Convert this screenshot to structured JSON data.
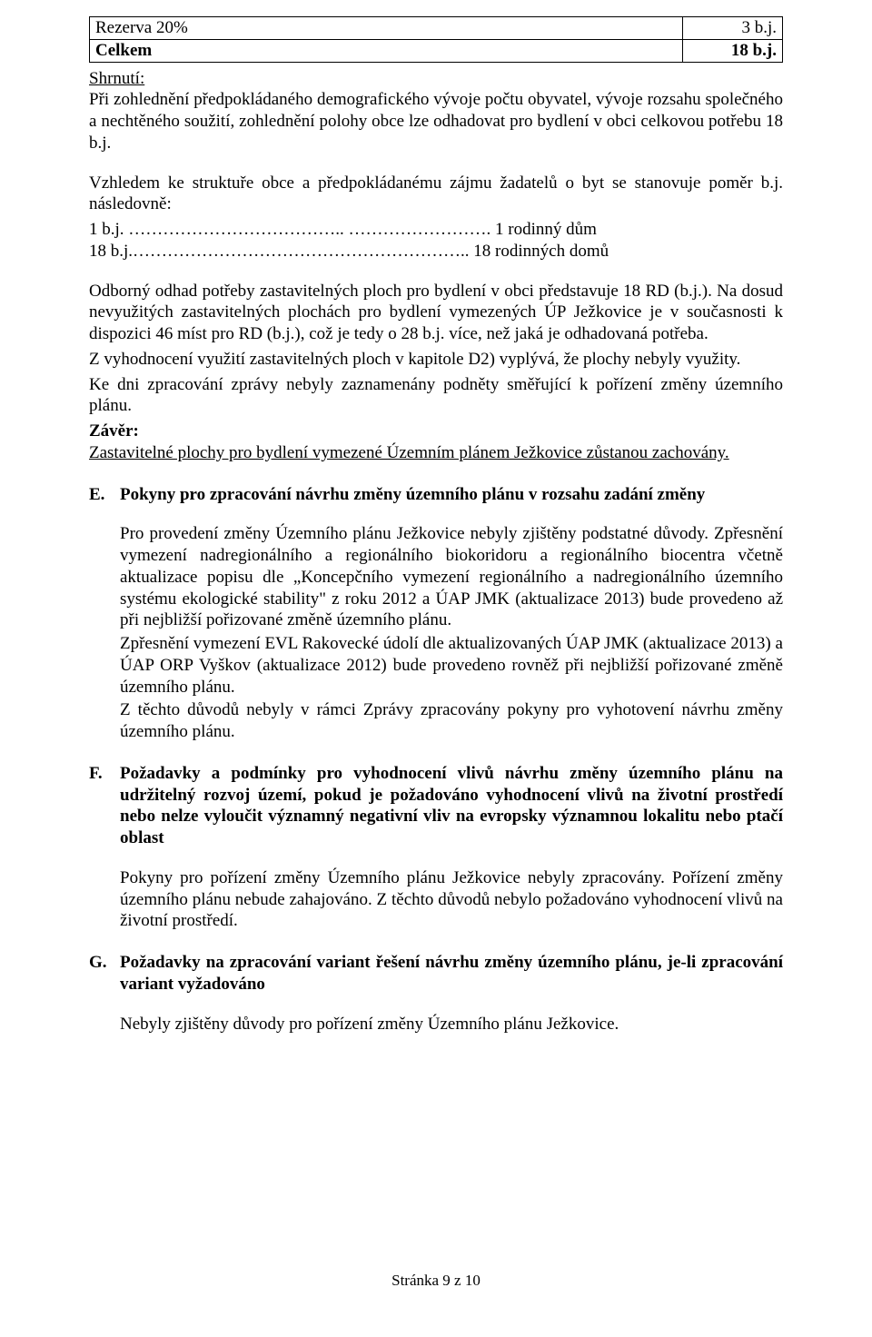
{
  "table": {
    "row1": {
      "label": "Rezerva 20%",
      "value": "3 b.j."
    },
    "row2": {
      "label": "Celkem",
      "value": "18 b.j."
    }
  },
  "shrnuti": {
    "heading": "Shrnutí:",
    "p1": "Při zohlednění předpokládaného demografického vývoje počtu obyvatel, vývoje rozsahu společného a nechtěného soužití, zohlednění polohy obce lze odhadovat pro bydlení v obci celkovou potřebu 18 b.j."
  },
  "vzhledem": {
    "p1": "Vzhledem ke struktuře obce a předpokládanému zájmu žadatelů o byt se stanovuje poměr b.j. následovně:",
    "l1": "1 b.j. ……………………………….. ……………………. 1 rodinný dům",
    "l2": "18 b.j.………………………………………………….. 18 rodinných domů"
  },
  "odborny": {
    "p1": "Odborný odhad potřeby zastavitelných ploch pro bydlení v obci představuje 18 RD (b.j.). Na dosud nevyužitých zastavitelných plochách pro bydlení vymezených ÚP Ježkovice je v současnosti k dispozici 46 míst pro RD (b.j.), což je tedy o 28 b.j. více, než jaká je odhadovaná potřeba.",
    "p2": "Z vyhodnocení využití zastavitelných ploch v kapitole D2) vyplývá, že plochy nebyly využity.",
    "p3": "Ke dni zpracování zprávy nebyly zaznamenány podněty směřující k pořízení změny územního plánu."
  },
  "zaver": {
    "heading": "Závěr:",
    "p1": "Zastavitelné plochy pro bydlení vymezené Územním plánem Ježkovice zůstanou zachovány."
  },
  "E": {
    "letter": "E.",
    "title": "Pokyny pro zpracování návrhu změny územního plánu v rozsahu zadání změny",
    "p1": "Pro provedení změny Územního plánu Ježkovice nebyly zjištěny podstatné důvody. Zpřesnění vymezení nadregionálního a regionálního biokoridoru a regionálního biocentra včetně aktualizace popisu dle „Koncepčního vymezení regionálního a nadregionálního územního systému ekologické stability\" z roku 2012 a ÚAP JMK (aktualizace 2013) bude provedeno až při nejbližší pořizované změně územního plánu.",
    "p2": "Zpřesnění vymezení EVL Rakovecké údolí dle aktualizovaných ÚAP JMK (aktualizace 2013) a ÚAP ORP Vyškov (aktualizace 2012) bude provedeno rovněž při nejbližší pořizované změně územního plánu.",
    "p3": "Z těchto důvodů nebyly v rámci Zprávy zpracovány pokyny pro vyhotovení návrhu změny územního plánu."
  },
  "F": {
    "letter": "F.",
    "title": "Požadavky a podmínky pro vyhodnocení vlivů návrhu změny územního plánu na udržitelný rozvoj území, pokud je požadováno vyhodnocení vlivů na životní prostředí nebo nelze vyloučit významný negativní vliv na evropsky významnou lokalitu nebo ptačí oblast",
    "p1": "Pokyny pro pořízení změny Územního plánu Ježkovice nebyly zpracovány. Pořízení změny územního plánu nebude zahajováno. Z těchto důvodů nebylo požadováno vyhodnocení vlivů na životní prostředí."
  },
  "G": {
    "letter": "G.",
    "title": "Požadavky na zpracování variant řešení návrhu změny územního plánu, je-li zpracování variant vyžadováno",
    "p1": "Nebyly zjištěny důvody pro pořízení změny Územního plánu Ježkovice."
  },
  "footer": "Stránka 9 z 10"
}
